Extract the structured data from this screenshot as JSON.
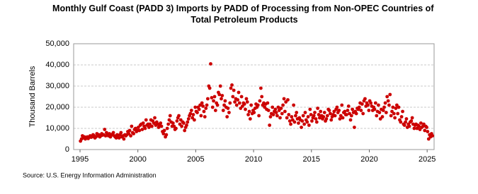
{
  "chart_data": {
    "type": "scatter",
    "title": "Monthly Gulf Coast (PADD 3) Imports by PADD of Processing from Non-OPEC Countries of Total Petroleum Products",
    "y_label": "Thousand Barrels",
    "source": "Source: U.S. Energy Information Administration",
    "color": "#cc0000",
    "grid": true,
    "xlim": [
      1994.45,
      2025.6
    ],
    "xticks": [
      1995,
      2000,
      2005,
      2010,
      2015,
      2020,
      2025
    ],
    "ylim": [
      0,
      50000
    ],
    "yticks": [
      0,
      {
        "value": 10000,
        "label": "10,000"
      },
      {
        "value": 20000,
        "label": "20,000"
      },
      {
        "value": 30000,
        "label": "30,000"
      },
      {
        "value": 40000,
        "label": "40,000"
      },
      {
        "value": 50000,
        "label": "50,000"
      }
    ],
    "x": [
      1995.04,
      1995.13,
      1995.21,
      1995.29,
      1995.38,
      1995.46,
      1995.54,
      1995.63,
      1995.71,
      1995.79,
      1995.88,
      1995.96,
      1996.04,
      1996.13,
      1996.21,
      1996.29,
      1996.38,
      1996.46,
      1996.54,
      1996.63,
      1996.71,
      1996.79,
      1996.88,
      1996.96,
      1997.04,
      1997.13,
      1997.21,
      1997.29,
      1997.38,
      1997.46,
      1997.54,
      1997.63,
      1997.71,
      1997.79,
      1997.88,
      1997.96,
      1998.04,
      1998.13,
      1998.21,
      1998.29,
      1998.38,
      1998.46,
      1998.54,
      1998.63,
      1998.71,
      1998.79,
      1998.88,
      1998.96,
      1999.04,
      1999.13,
      1999.21,
      1999.29,
      1999.38,
      1999.46,
      1999.54,
      1999.63,
      1999.71,
      1999.79,
      1999.88,
      1999.96,
      2000.04,
      2000.13,
      2000.21,
      2000.29,
      2000.38,
      2000.46,
      2000.54,
      2000.63,
      2000.71,
      2000.79,
      2000.88,
      2000.96,
      2001.04,
      2001.13,
      2001.21,
      2001.29,
      2001.38,
      2001.46,
      2001.54,
      2001.63,
      2001.71,
      2001.79,
      2001.88,
      2001.96,
      2002.04,
      2002.13,
      2002.21,
      2002.29,
      2002.38,
      2002.46,
      2002.54,
      2002.63,
      2002.71,
      2002.79,
      2002.88,
      2002.96,
      2003.04,
      2003.13,
      2003.21,
      2003.29,
      2003.38,
      2003.46,
      2003.54,
      2003.63,
      2003.71,
      2003.79,
      2003.88,
      2003.96,
      2004.04,
      2004.13,
      2004.21,
      2004.29,
      2004.38,
      2004.46,
      2004.54,
      2004.63,
      2004.71,
      2004.79,
      2004.88,
      2004.96,
      2005.04,
      2005.13,
      2005.21,
      2005.29,
      2005.38,
      2005.46,
      2005.54,
      2005.63,
      2005.71,
      2005.79,
      2005.88,
      2005.96,
      2006.04,
      2006.13,
      2006.21,
      2006.29,
      2006.38,
      2006.46,
      2006.54,
      2006.63,
      2006.71,
      2006.79,
      2006.88,
      2006.96,
      2007.04,
      2007.13,
      2007.21,
      2007.29,
      2007.38,
      2007.46,
      2007.54,
      2007.63,
      2007.71,
      2007.79,
      2007.88,
      2007.96,
      2008.04,
      2008.13,
      2008.21,
      2008.29,
      2008.38,
      2008.46,
      2008.54,
      2008.63,
      2008.71,
      2008.79,
      2008.88,
      2008.96,
      2009.04,
      2009.13,
      2009.21,
      2009.29,
      2009.38,
      2009.46,
      2009.54,
      2009.63,
      2009.71,
      2009.79,
      2009.88,
      2009.96,
      2010.04,
      2010.13,
      2010.21,
      2010.29,
      2010.38,
      2010.46,
      2010.54,
      2010.63,
      2010.71,
      2010.79,
      2010.88,
      2010.96,
      2011.04,
      2011.13,
      2011.21,
      2011.29,
      2011.38,
      2011.46,
      2011.54,
      2011.63,
      2011.71,
      2011.79,
      2011.88,
      2011.96,
      2012.04,
      2012.13,
      2012.21,
      2012.29,
      2012.38,
      2012.46,
      2012.54,
      2012.63,
      2012.71,
      2012.79,
      2012.88,
      2012.96,
      2013.04,
      2013.13,
      2013.21,
      2013.29,
      2013.38,
      2013.46,
      2013.54,
      2013.63,
      2013.71,
      2013.79,
      2013.88,
      2013.96,
      2014.04,
      2014.13,
      2014.21,
      2014.29,
      2014.38,
      2014.46,
      2014.54,
      2014.63,
      2014.71,
      2014.79,
      2014.88,
      2014.96,
      2015.04,
      2015.13,
      2015.21,
      2015.29,
      2015.38,
      2015.46,
      2015.54,
      2015.63,
      2015.71,
      2015.79,
      2015.88,
      2015.96,
      2016.04,
      2016.13,
      2016.21,
      2016.29,
      2016.38,
      2016.46,
      2016.54,
      2016.63,
      2016.71,
      2016.79,
      2016.88,
      2016.96,
      2017.04,
      2017.13,
      2017.21,
      2017.29,
      2017.38,
      2017.46,
      2017.54,
      2017.63,
      2017.71,
      2017.79,
      2017.88,
      2017.96,
      2018.04,
      2018.13,
      2018.21,
      2018.29,
      2018.38,
      2018.46,
      2018.54,
      2018.63,
      2018.71,
      2018.79,
      2018.88,
      2018.96,
      2019.04,
      2019.13,
      2019.21,
      2019.29,
      2019.38,
      2019.46,
      2019.54,
      2019.63,
      2019.71,
      2019.79,
      2019.88,
      2019.96,
      2020.04,
      2020.13,
      2020.21,
      2020.29,
      2020.38,
      2020.46,
      2020.54,
      2020.63,
      2020.71,
      2020.79,
      2020.88,
      2020.96,
      2021.04,
      2021.13,
      2021.21,
      2021.29,
      2021.38,
      2021.46,
      2021.54,
      2021.63,
      2021.71,
      2021.79,
      2021.88,
      2021.96,
      2022.04,
      2022.13,
      2022.21,
      2022.29,
      2022.38,
      2022.46,
      2022.54,
      2022.63,
      2022.71,
      2022.79,
      2022.88,
      2022.96,
      2023.04,
      2023.13,
      2023.21,
      2023.29,
      2023.38,
      2023.46,
      2023.54,
      2023.63,
      2023.71,
      2023.79,
      2023.88,
      2023.96,
      2024.04,
      2024.13,
      2024.21,
      2024.29,
      2024.38,
      2024.46,
      2024.54,
      2024.63,
      2024.71,
      2024.79,
      2024.88,
      2024.96,
      2025.04,
      2025.13,
      2025.21,
      2025.29,
      2025.38,
      2025.46
    ],
    "values": [
      4000,
      5000,
      6500,
      5500,
      6000,
      5000,
      5500,
      6000,
      5200,
      6000,
      6500,
      5800,
      6000,
      7000,
      6500,
      5500,
      6000,
      7500,
      6500,
      7000,
      6000,
      6500,
      7500,
      6800,
      7000,
      9500,
      6500,
      8000,
      7000,
      6500,
      7500,
      6000,
      6800,
      7200,
      8000,
      6500,
      6000,
      5500,
      7000,
      6500,
      5500,
      7000,
      8000,
      6000,
      6500,
      5000,
      7000,
      6500,
      7000,
      8500,
      7500,
      9000,
      6500,
      11000,
      8000,
      7500,
      9500,
      10000,
      8500,
      9000,
      10500,
      9000,
      11500,
      12000,
      9500,
      12500,
      11000,
      10000,
      14000,
      11500,
      12000,
      10500,
      12000,
      14000,
      11000,
      13500,
      12500,
      15000,
      11500,
      13000,
      12000,
      10500,
      11500,
      12500,
      11000,
      8500,
      7500,
      9000,
      6000,
      7000,
      10000,
      12000,
      14000,
      16000,
      13000,
      11000,
      12500,
      11000,
      9500,
      10000,
      13500,
      15000,
      16000,
      12000,
      14000,
      11000,
      13000,
      12500,
      9000,
      10500,
      11500,
      13000,
      14500,
      16000,
      17000,
      18500,
      15000,
      16500,
      14000,
      20000,
      18000,
      17500,
      20000,
      19000,
      21000,
      16000,
      22000,
      20500,
      18000,
      15500,
      19500,
      21000,
      24000,
      30000,
      29000,
      40500,
      24500,
      20000,
      23000,
      25000,
      18500,
      22000,
      21000,
      27000,
      26000,
      30000,
      24000,
      25500,
      18500,
      21000,
      23000,
      20000,
      15500,
      19500,
      17500,
      22000,
      29000,
      30500,
      25000,
      28000,
      22500,
      24000,
      21000,
      23500,
      27000,
      22000,
      19500,
      25000,
      20500,
      22000,
      21500,
      19000,
      24000,
      22500,
      16500,
      18000,
      14500,
      21000,
      17000,
      18500,
      17500,
      19500,
      21500,
      20000,
      21000,
      16000,
      23000,
      29000,
      25000,
      21000,
      22000,
      20000,
      21500,
      19000,
      22000,
      18500,
      11500,
      15500,
      17000,
      20000,
      16500,
      18000,
      19000,
      17500,
      16000,
      20000,
      18500,
      15000,
      19500,
      17000,
      21000,
      24000,
      18000,
      22500,
      15000,
      23500,
      16500,
      13500,
      12000,
      15500,
      14000,
      21000,
      13000,
      16000,
      17500,
      14500,
      12500,
      15000,
      14000,
      10500,
      13500,
      16000,
      12000,
      17500,
      14000,
      13000,
      15500,
      11500,
      19000,
      16500,
      13500,
      15000,
      16000,
      17500,
      14500,
      13000,
      19500,
      16500,
      15000,
      18000,
      16000,
      14500,
      15500,
      17500,
      13500,
      14500,
      16000,
      19000,
      18500,
      17000,
      14000,
      15500,
      16500,
      18000,
      16000,
      19000,
      20000,
      17500,
      18500,
      14500,
      16000,
      21000,
      15000,
      17500,
      18000,
      16500,
      16500,
      18500,
      20500,
      17000,
      14000,
      16000,
      19000,
      17500,
      10500,
      18000,
      17000,
      19500,
      19000,
      20000,
      22000,
      18500,
      21500,
      17000,
      23000,
      24000,
      20500,
      22000,
      21000,
      18500,
      23000,
      22000,
      20500,
      18500,
      20000,
      19000,
      22000,
      16000,
      18000,
      21000,
      17500,
      14500,
      19000,
      15500,
      18500,
      20000,
      22000,
      17500,
      25000,
      23000,
      21000,
      26000,
      16000,
      18000,
      20000,
      17000,
      15000,
      19500,
      21000,
      17000,
      20000,
      14000,
      13000,
      15500,
      18000,
      12000,
      11500,
      13000,
      14500,
      10500,
      12000,
      11000,
      13000,
      13500,
      15000,
      12000,
      10000,
      11500,
      12000,
      10000,
      11500,
      11000,
      9500,
      12500,
      10500,
      11000,
      12000,
      9000,
      11000,
      10500,
      8500,
      5000,
      7000,
      6000,
      7500,
      6500
    ]
  }
}
